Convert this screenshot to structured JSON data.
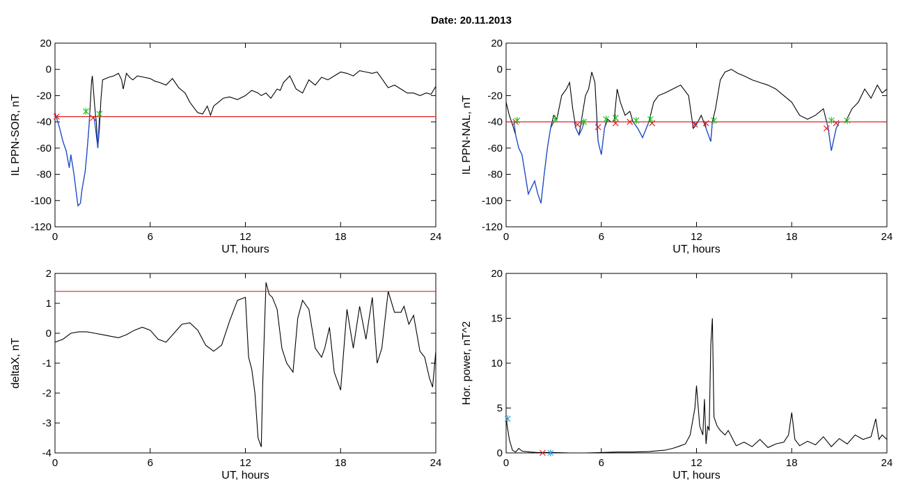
{
  "figure_title": "Date:  20.11.2013",
  "chart_data": [
    {
      "type": "line",
      "ylabel": "IL PPN-SOR, nT",
      "xlabel": "UT, hours",
      "xlim": [
        0,
        24
      ],
      "ylim": [
        -120,
        20
      ],
      "xticks": [
        0,
        6,
        12,
        18,
        24
      ],
      "yticks": [
        -120,
        -100,
        -80,
        -60,
        -40,
        -20,
        0,
        20
      ],
      "threshold": -36,
      "series": [
        {
          "color": "#000000",
          "x": [
            0,
            0.3,
            0.5,
            0.7,
            0.9,
            1.0,
            1.2,
            1.3,
            1.45,
            1.6,
            1.7,
            1.8,
            1.9,
            2.0,
            2.1,
            2.15,
            2.2,
            2.3,
            2.35,
            2.4,
            2.5,
            2.6,
            2.7,
            2.8,
            2.9,
            3.0,
            3.2,
            3.4,
            3.7,
            4.0,
            4.2,
            4.3,
            4.5,
            4.7,
            4.9,
            5.2,
            5.6,
            6.0,
            6.3,
            6.6,
            7.0,
            7.4,
            7.8,
            8.2,
            8.5,
            8.8,
            9.0,
            9.3,
            9.6,
            9.8,
            10.0,
            10.3,
            10.6,
            11.0,
            11.5,
            12.0,
            12.4,
            12.8,
            13.0,
            13.3,
            13.6,
            14.0,
            14.2,
            14.4,
            14.8,
            15.2,
            15.6,
            16.0,
            16.4,
            16.8,
            17.2,
            17.6,
            18.0,
            18.4,
            18.8,
            19.2,
            19.6,
            20.0,
            20.3,
            20.6,
            21.0,
            21.4,
            21.8,
            22.2,
            22.6,
            23.0,
            23.4,
            23.7,
            24.0
          ],
          "y": [
            -33,
            -45,
            -55,
            -62,
            -75,
            -65,
            -80,
            -90,
            -104,
            -102,
            -92,
            -85,
            -78,
            -65,
            -50,
            -42,
            -32,
            -10,
            -5,
            -12,
            -28,
            -40,
            -60,
            -45,
            -22,
            -8,
            -7,
            -6,
            -5,
            -3,
            -8,
            -15,
            -3,
            -6,
            -8,
            -5,
            -6,
            -7,
            -9,
            -10,
            -12,
            -7,
            -14,
            -18,
            -25,
            -30,
            -33,
            -34,
            -28,
            -35,
            -28,
            -25,
            -22,
            -21,
            -23,
            -20,
            -16,
            -18,
            -20,
            -18,
            -22,
            -15,
            -16,
            -10,
            -5,
            -15,
            -18,
            -8,
            -12,
            -6,
            -8,
            -5,
            -2,
            -3,
            -5,
            -1,
            -2,
            -3,
            -2,
            -7,
            -14,
            -12,
            -15,
            -18,
            -18,
            -20,
            -18,
            -19,
            -13
          ]
        },
        {
          "color": "#1f4fd0",
          "x": [
            0,
            0.3,
            0.5,
            0.7,
            0.9,
            1.0,
            1.2,
            1.3,
            1.45,
            1.6,
            1.7,
            1.8,
            1.9,
            2.0,
            2.1,
            2.15,
            2.2
          ],
          "y": [
            -33,
            -45,
            -55,
            -62,
            -75,
            -65,
            -80,
            -90,
            -104,
            -102,
            -92,
            -85,
            -78,
            -65,
            -50,
            -42,
            -32
          ]
        },
        {
          "color": "#1f4fd0",
          "x": [
            2.45,
            2.5,
            2.6,
            2.7,
            2.8
          ],
          "y": [
            -36,
            -40,
            -50,
            -60,
            -36
          ]
        }
      ],
      "markers": [
        {
          "symbol": "x",
          "color": "#e02020",
          "x": [
            0.1,
            2.4
          ],
          "y": [
            -36,
            -37
          ]
        },
        {
          "symbol": "*",
          "color": "#20c020",
          "x": [
            1.95,
            2.8
          ],
          "y": [
            -32,
            -34
          ]
        }
      ]
    },
    {
      "type": "line",
      "ylabel": "IL PPN-NAL, nT",
      "xlabel": "UT, hours",
      "xlim": [
        0,
        24
      ],
      "ylim": [
        -120,
        20
      ],
      "xticks": [
        0,
        6,
        12,
        18,
        24
      ],
      "yticks": [
        -120,
        -100,
        -80,
        -60,
        -40,
        -20,
        0,
        20
      ],
      "threshold": -40,
      "series": [
        {
          "color": "#000000",
          "x": [
            0,
            0.2,
            0.4,
            0.6,
            0.8,
            1.0,
            1.2,
            1.4,
            1.6,
            1.8,
            2.0,
            2.2,
            2.4,
            2.6,
            2.8,
            3.0,
            3.2,
            3.5,
            3.8,
            4.0,
            4.2,
            4.4,
            4.6,
            4.8,
            5.0,
            5.2,
            5.4,
            5.6,
            5.8,
            6.0,
            6.2,
            6.4,
            6.6,
            6.8,
            7.0,
            7.2,
            7.5,
            7.8,
            8.0,
            8.3,
            8.6,
            9.0,
            9.3,
            9.6,
            10.0,
            10.5,
            11.0,
            11.5,
            11.8,
            12.0,
            12.3,
            12.6,
            12.9,
            13.0,
            13.2,
            13.5,
            13.8,
            14.2,
            14.6,
            15.0,
            15.5,
            16.0,
            16.5,
            17.0,
            17.5,
            18.0,
            18.5,
            19.0,
            19.5,
            20.0,
            20.3,
            20.5,
            20.8,
            21.0,
            21.4,
            21.8,
            22.2,
            22.6,
            23.0,
            23.4,
            23.7,
            24.0
          ],
          "y": [
            -25,
            -35,
            -42,
            -50,
            -60,
            -65,
            -80,
            -95,
            -90,
            -85,
            -95,
            -102,
            -80,
            -60,
            -45,
            -35,
            -38,
            -20,
            -15,
            -10,
            -30,
            -45,
            -50,
            -35,
            -20,
            -15,
            -2,
            -10,
            -55,
            -65,
            -45,
            -38,
            -40,
            -40,
            -15,
            -25,
            -35,
            -32,
            -40,
            -45,
            -52,
            -40,
            -25,
            -20,
            -18,
            -15,
            -12,
            -20,
            -45,
            -42,
            -35,
            -45,
            -55,
            -40,
            -30,
            -8,
            -2,
            0,
            -3,
            -5,
            -8,
            -10,
            -12,
            -15,
            -20,
            -25,
            -35,
            -38,
            -35,
            -30,
            -45,
            -62,
            -45,
            -40,
            -40,
            -30,
            -25,
            -15,
            -22,
            -12,
            -18,
            -15
          ]
        },
        {
          "color": "#1f4fd0",
          "x": [
            0.5,
            0.6,
            0.8,
            1.0,
            1.2,
            1.4,
            1.6,
            1.8,
            2.0,
            2.2,
            2.4,
            2.6,
            2.8,
            3.0
          ],
          "y": [
            -40,
            -50,
            -60,
            -65,
            -80,
            -95,
            -90,
            -85,
            -95,
            -102,
            -80,
            -60,
            -45,
            -40
          ]
        },
        {
          "color": "#1f4fd0",
          "x": [
            4.3,
            4.4,
            4.6,
            4.8,
            4.9
          ],
          "y": [
            -40,
            -45,
            -50,
            -45,
            -40
          ]
        },
        {
          "color": "#1f4fd0",
          "x": [
            5.7,
            5.8,
            6.0,
            6.2,
            6.3
          ],
          "y": [
            -40,
            -55,
            -65,
            -45,
            -40
          ]
        },
        {
          "color": "#1f4fd0",
          "x": [
            8.0,
            8.3,
            8.6,
            9.0
          ],
          "y": [
            -40,
            -45,
            -52,
            -40
          ]
        },
        {
          "color": "#1f4fd0",
          "x": [
            11.8,
            12.0,
            12.1
          ],
          "y": [
            -40,
            -42,
            -40
          ]
        },
        {
          "color": "#1f4fd0",
          "x": [
            12.55,
            12.6,
            12.9,
            13.0
          ],
          "y": [
            -40,
            -45,
            -55,
            -40
          ]
        },
        {
          "color": "#1f4fd0",
          "x": [
            20.2,
            20.3,
            20.5,
            20.8,
            21.0
          ],
          "y": [
            -40,
            -45,
            -62,
            -45,
            -40
          ]
        }
      ],
      "markers": [
        {
          "symbol": "x",
          "color": "#e02020",
          "x": [
            0.6,
            4.5,
            5.8,
            6.9,
            7.8,
            9.2,
            11.9,
            12.6,
            20.2,
            20.8
          ],
          "y": [
            -40,
            -42,
            -44,
            -41,
            -40,
            -41,
            -42,
            -41,
            -45,
            -41
          ]
        },
        {
          "color": "#20c020",
          "symbol": "*",
          "x": [
            0.7,
            3.1,
            4.9,
            6.3,
            6.9,
            8.2,
            9.1,
            13.1,
            20.5,
            21.5
          ],
          "y": [
            -39,
            -38,
            -40,
            -38,
            -37,
            -39,
            -38,
            -39,
            -39,
            -39
          ]
        }
      ]
    },
    {
      "type": "line",
      "ylabel": "deltaX, nT",
      "xlabel": "UT, hours",
      "xlim": [
        0,
        24
      ],
      "ylim": [
        -4,
        2
      ],
      "xticks": [
        0,
        6,
        12,
        18,
        24
      ],
      "yticks": [
        -4,
        -3,
        -2,
        -1,
        0,
        1,
        2
      ],
      "threshold": 1.4,
      "series": [
        {
          "color": "#000000",
          "x": [
            0,
            0.5,
            1.0,
            1.5,
            2.0,
            2.5,
            3.0,
            3.5,
            4.0,
            4.5,
            5.0,
            5.5,
            6.0,
            6.5,
            7.0,
            7.5,
            8.0,
            8.5,
            9.0,
            9.5,
            10.0,
            10.5,
            11.0,
            11.5,
            12.0,
            12.2,
            12.4,
            12.6,
            12.8,
            13.0,
            13.1,
            13.3,
            13.5,
            13.7,
            14.0,
            14.3,
            14.6,
            15.0,
            15.3,
            15.6,
            16.0,
            16.4,
            16.8,
            17.0,
            17.3,
            17.6,
            18.0,
            18.4,
            18.8,
            19.2,
            19.6,
            20.0,
            20.3,
            20.6,
            21.0,
            21.4,
            21.8,
            22.0,
            22.3,
            22.6,
            23.0,
            23.3,
            23.6,
            23.8,
            24.0
          ],
          "y": [
            -0.3,
            -0.2,
            0,
            0.05,
            0.05,
            0,
            -0.05,
            -0.1,
            -0.15,
            -0.05,
            0.1,
            0.2,
            0.1,
            -0.2,
            -0.3,
            0,
            0.3,
            0.35,
            0.1,
            -0.4,
            -0.6,
            -0.4,
            0.4,
            1.1,
            1.2,
            -0.8,
            -1.2,
            -2.0,
            -3.5,
            -3.8,
            -1.5,
            1.7,
            1.3,
            1.2,
            0.8,
            -0.5,
            -1.0,
            -1.3,
            0.5,
            1.1,
            0.8,
            -0.5,
            -0.8,
            -0.5,
            0.2,
            -1.3,
            -1.9,
            0.8,
            -0.5,
            0.9,
            -0.2,
            1.2,
            -1.0,
            -0.5,
            1.4,
            0.7,
            0.7,
            0.9,
            0.3,
            0.6,
            -0.6,
            -0.8,
            -1.5,
            -1.8,
            -0.6
          ]
        }
      ],
      "markers": []
    },
    {
      "type": "line",
      "ylabel": "Hor. power, nT^2",
      "xlabel": "UT, hours",
      "xlim": [
        0,
        24
      ],
      "ylim": [
        0,
        20
      ],
      "xticks": [
        0,
        6,
        12,
        18,
        24
      ],
      "yticks": [
        0,
        5,
        10,
        15,
        20
      ],
      "series": [
        {
          "color": "#000000",
          "x": [
            0,
            0.2,
            0.4,
            0.6,
            0.8,
            1.0,
            1.5,
            2.0,
            3.0,
            4.0,
            5.0,
            6.0,
            7.0,
            8.0,
            9.0,
            10.0,
            10.5,
            11.0,
            11.3,
            11.6,
            11.9,
            12.0,
            12.2,
            12.4,
            12.5,
            12.6,
            12.7,
            12.8,
            12.9,
            13.0,
            13.1,
            13.3,
            13.5,
            13.8,
            14.0,
            14.5,
            15.0,
            15.5,
            16.0,
            16.5,
            17.0,
            17.5,
            17.8,
            18.0,
            18.2,
            18.5,
            19.0,
            19.5,
            20.0,
            20.5,
            21.0,
            21.5,
            22.0,
            22.5,
            23.0,
            23.3,
            23.5,
            23.7,
            24.0
          ],
          "y": [
            3.8,
            1.5,
            0.3,
            0.1,
            0.5,
            0.2,
            0.1,
            0.05,
            0.05,
            0,
            0,
            0.05,
            0.1,
            0.1,
            0.15,
            0.3,
            0.5,
            0.8,
            1.0,
            2.0,
            5.0,
            7.5,
            3.0,
            2.0,
            6.0,
            1.0,
            3.0,
            2.5,
            12.0,
            15.0,
            4.0,
            3.0,
            2.5,
            2.0,
            2.5,
            0.8,
            1.2,
            0.7,
            1.5,
            0.6,
            1.0,
            1.2,
            2.0,
            4.5,
            1.5,
            0.8,
            1.3,
            0.9,
            1.8,
            0.7,
            1.6,
            1.0,
            2.0,
            1.5,
            1.8,
            3.8,
            1.5,
            2.0,
            1.5
          ]
        }
      ],
      "markers": [
        {
          "symbol": "x",
          "color": "#e02020",
          "x": [
            2.3
          ],
          "y": [
            0
          ]
        },
        {
          "symbol": "*",
          "color": "#3aa0e0",
          "x": [
            0.1,
            2.8
          ],
          "y": [
            3.8,
            0
          ]
        }
      ]
    }
  ]
}
